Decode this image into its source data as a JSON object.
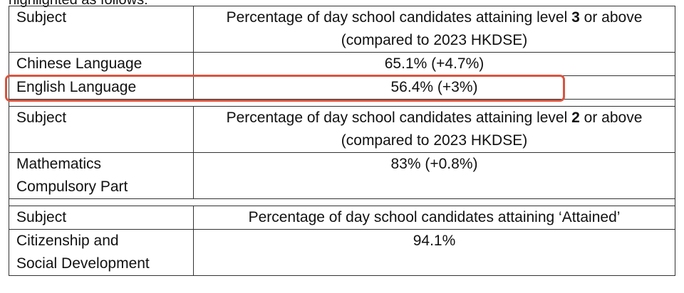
{
  "intro_text": "highlighted as follows:",
  "sections": [
    {
      "header_subject": "Subject",
      "header_value_before": "Percentage of day school candidates attaining level ",
      "header_value_bold": "3",
      "header_value_after": " or above",
      "header_value_line2": "(compared to 2023 HKDSE)",
      "rows": [
        {
          "subject_line1": "Chinese Language",
          "value": "65.1%  (+4.7%)"
        },
        {
          "subject_line1": "English Language",
          "value": "56.4%  (+3%)"
        }
      ]
    },
    {
      "header_subject": "Subject",
      "header_value_before": "Percentage of day school candidates attaining level ",
      "header_value_bold": "2",
      "header_value_after": " or above",
      "header_value_line2": "(compared to 2023 HKDSE)",
      "rows": [
        {
          "subject_line1": "Mathematics",
          "subject_line2": "Compulsory Part",
          "value": "83%  (+0.8%)"
        }
      ]
    },
    {
      "header_subject": "Subject",
      "header_value_before": "Percentage of day school candidates attaining ‘Attained’",
      "rows": [
        {
          "subject_line1": "Citizenship and",
          "subject_line2": "Social Development",
          "value": "94.1%"
        }
      ]
    }
  ],
  "highlight_color": "#d9543f"
}
